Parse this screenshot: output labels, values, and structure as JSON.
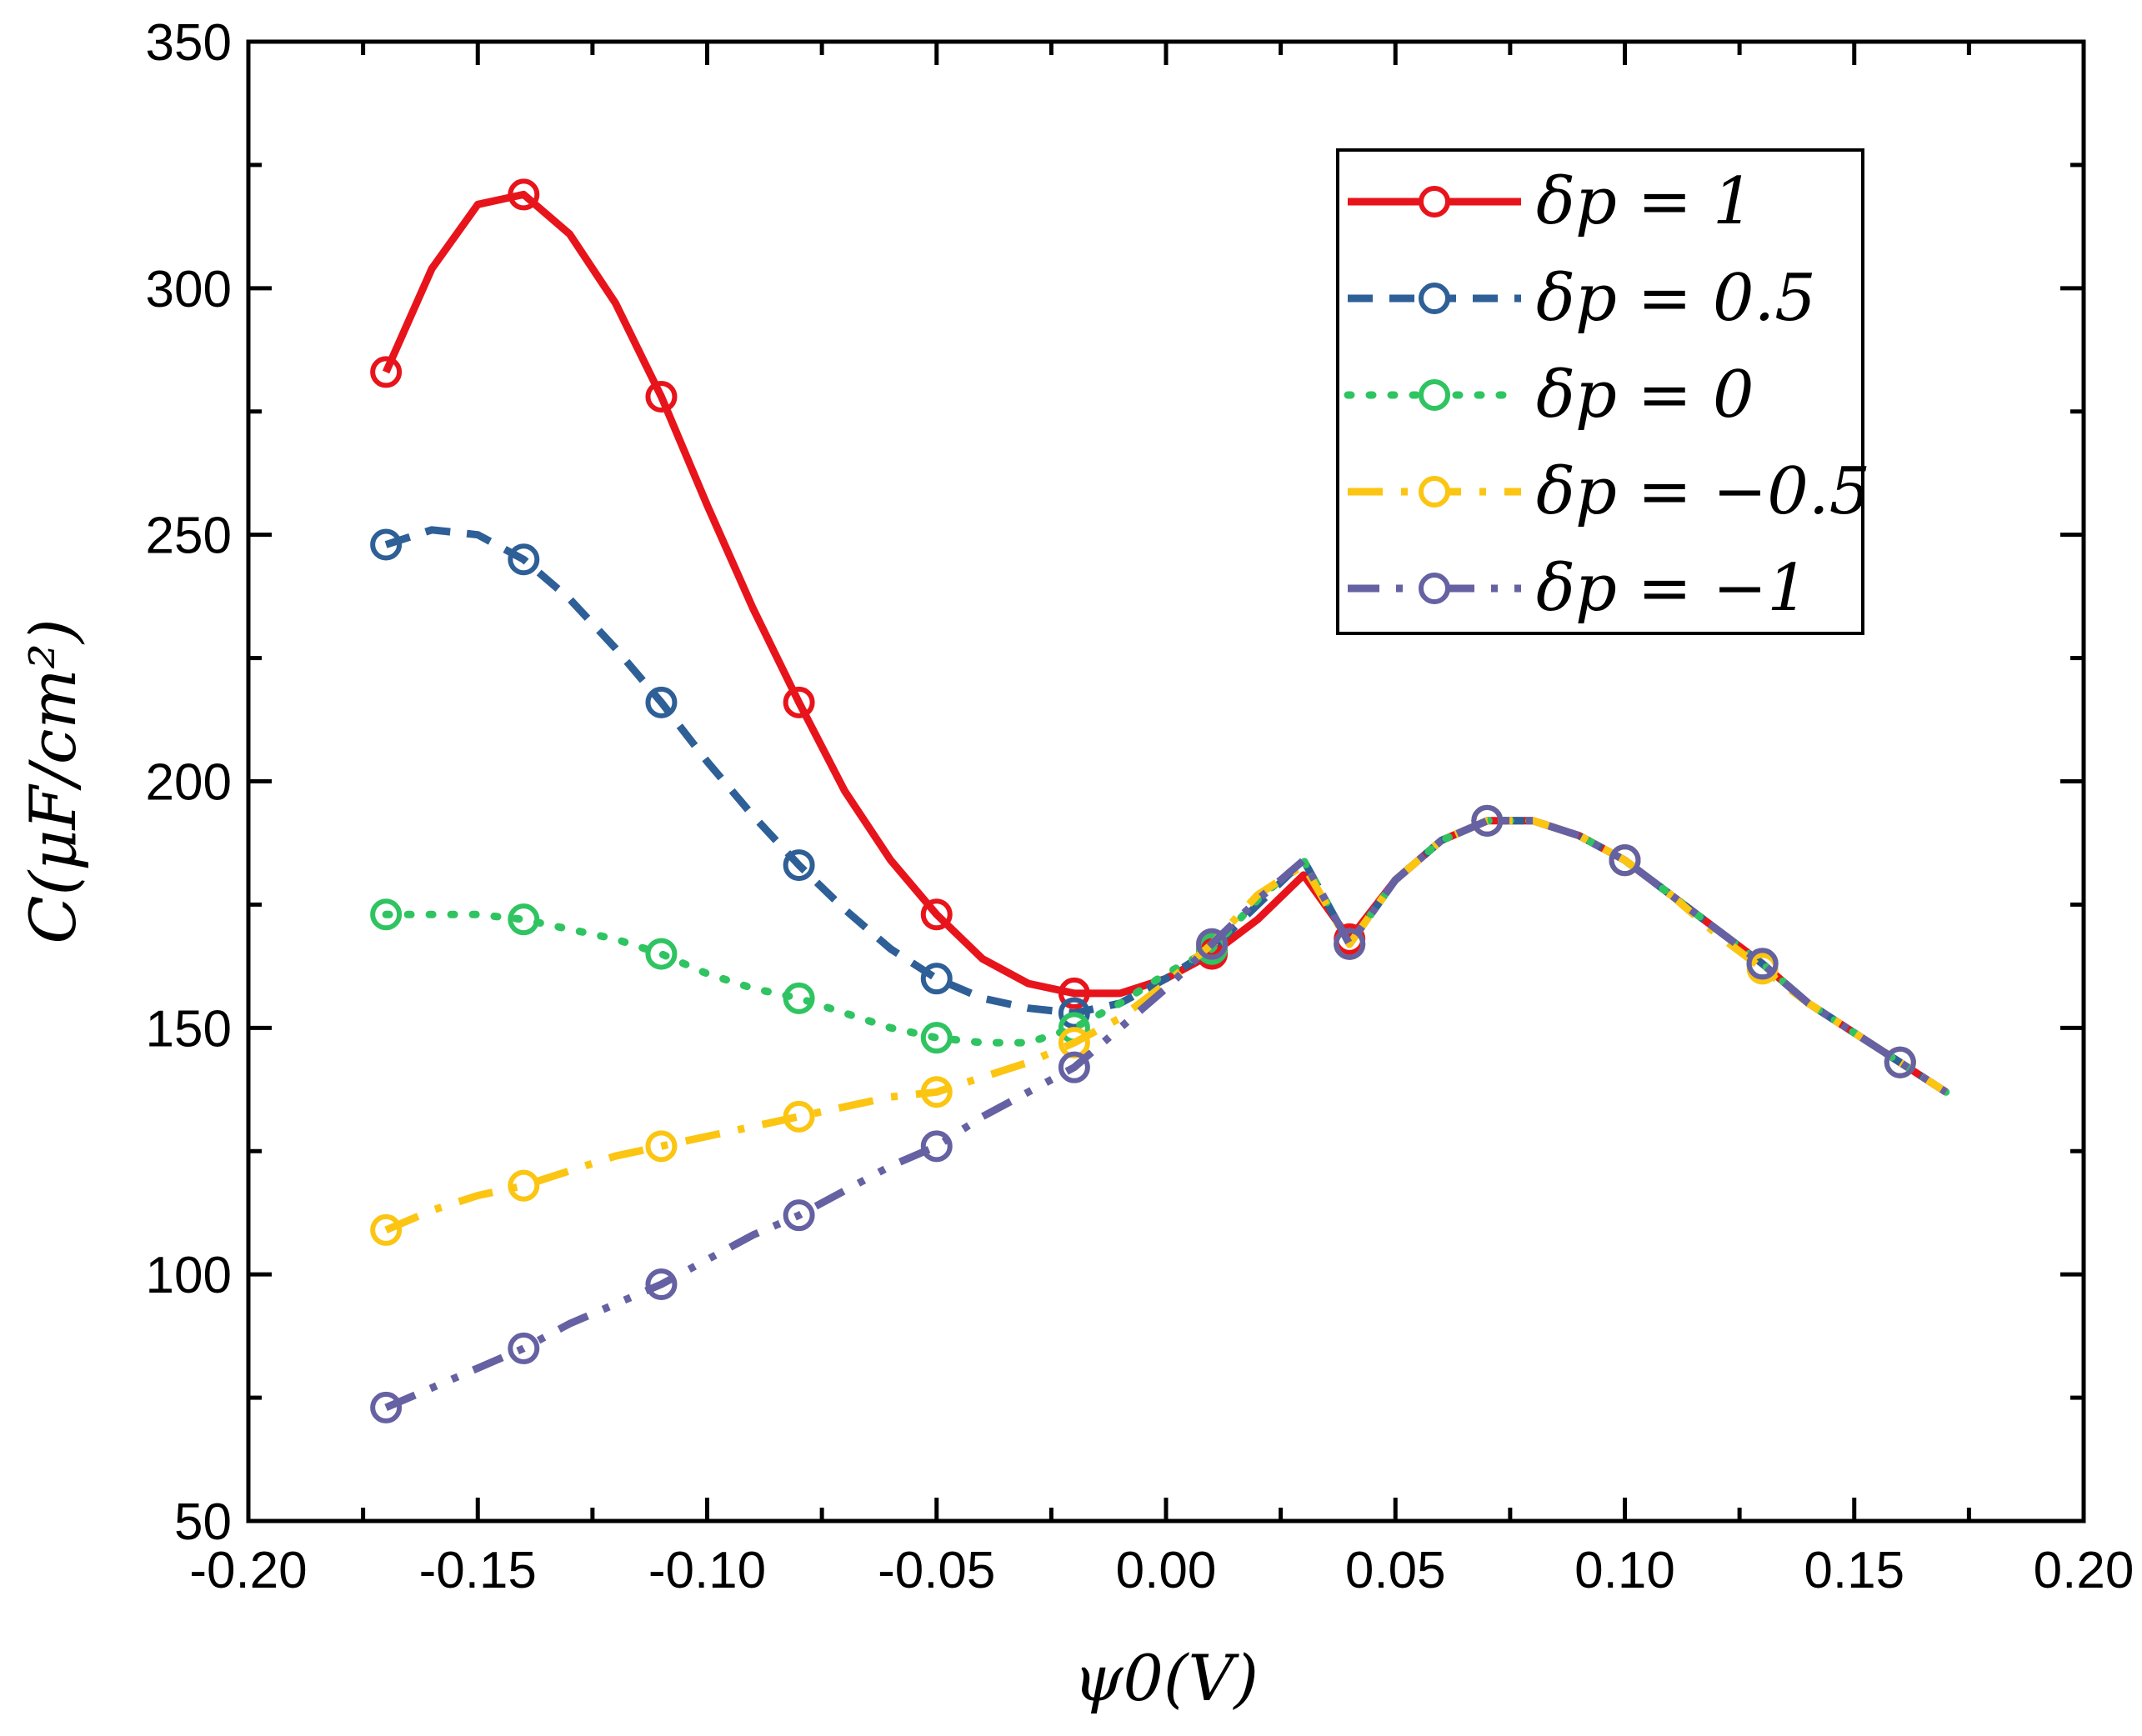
{
  "chart_data": {
    "type": "line",
    "title": "",
    "xlabel": "ψ0(V)",
    "ylabel": "C(μF/cm²)",
    "xlim": [
      -0.2,
      0.2
    ],
    "ylim": [
      50,
      350
    ],
    "xticks": [
      -0.2,
      -0.15,
      -0.1,
      -0.05,
      0.0,
      0.05,
      0.1,
      0.15,
      0.2
    ],
    "xtick_labels": [
      "-0.20",
      "-0.15",
      "-0.10",
      "-0.05",
      "0.00",
      "0.05",
      "0.10",
      "0.15",
      "0.20"
    ],
    "yticks": [
      50,
      100,
      150,
      200,
      250,
      300,
      350
    ],
    "ytick_labels": [
      "50",
      "100",
      "150",
      "200",
      "250",
      "300",
      "350"
    ],
    "grid": false,
    "legend_position": "top-right",
    "series": [
      {
        "name": "δp = 1",
        "color": "#e8141b",
        "dash": "solid",
        "x": [
          -0.17,
          -0.16,
          -0.15,
          -0.14,
          -0.13,
          -0.12,
          -0.11,
          -0.1,
          -0.09,
          -0.08,
          -0.07,
          -0.06,
          -0.05,
          -0.04,
          -0.03,
          -0.02,
          -0.01,
          0.0,
          0.01,
          0.02,
          0.03,
          0.04,
          0.05,
          0.06,
          0.07,
          0.08,
          0.09,
          0.1,
          0.11,
          0.12,
          0.13,
          0.14,
          0.15,
          0.16,
          0.17
        ],
        "y": [
          283,
          304,
          317,
          319,
          311,
          297,
          278,
          256,
          235,
          216,
          198,
          184,
          173,
          164,
          159,
          157,
          157,
          160,
          165,
          172,
          181,
          168,
          180,
          188,
          192,
          192,
          189,
          184,
          177,
          170,
          163,
          155,
          149,
          143,
          137
        ],
        "markers_x": [
          -0.17,
          -0.14,
          -0.11,
          -0.08,
          -0.05,
          -0.02,
          0.01,
          0.04,
          0.07,
          0.1,
          0.13,
          0.16
        ],
        "markers_y": [
          283,
          319,
          278,
          216,
          173,
          157,
          165,
          168,
          192,
          184,
          163,
          143
        ]
      },
      {
        "name": "δp = 0.5",
        "color": "#2e5f97",
        "dash": "dash",
        "x": [
          -0.17,
          -0.16,
          -0.15,
          -0.14,
          -0.13,
          -0.12,
          -0.11,
          -0.1,
          -0.09,
          -0.08,
          -0.07,
          -0.06,
          -0.05,
          -0.04,
          -0.03,
          -0.02,
          -0.01,
          0.0,
          0.01,
          0.02,
          0.03,
          0.04,
          0.05,
          0.06,
          0.07,
          0.08,
          0.09,
          0.1,
          0.11,
          0.12,
          0.13,
          0.14,
          0.15,
          0.16,
          0.17
        ],
        "y": [
          248,
          251,
          250,
          245,
          237,
          227,
          216,
          204,
          193,
          183,
          174,
          166,
          160,
          156,
          154,
          153,
          155,
          160,
          166,
          175,
          184,
          167,
          180,
          188,
          192,
          192,
          189,
          184,
          177,
          170,
          163,
          155,
          149,
          143,
          137
        ],
        "markers_x": [
          -0.17,
          -0.14,
          -0.11,
          -0.08,
          -0.05,
          -0.02,
          0.01,
          0.04,
          0.07,
          0.1,
          0.13,
          0.16
        ],
        "markers_y": [
          248,
          245,
          216,
          183,
          160,
          153,
          166,
          167,
          192,
          184,
          163,
          143
        ]
      },
      {
        "name": "δp = 0",
        "color": "#2fc461",
        "dash": "dot",
        "x": [
          -0.17,
          -0.16,
          -0.15,
          -0.14,
          -0.13,
          -0.12,
          -0.11,
          -0.1,
          -0.09,
          -0.08,
          -0.07,
          -0.06,
          -0.05,
          -0.04,
          -0.03,
          -0.02,
          -0.01,
          0.0,
          0.01,
          0.02,
          0.03,
          0.04,
          0.05,
          0.06,
          0.07,
          0.08,
          0.09,
          0.1,
          0.11,
          0.12,
          0.13,
          0.14,
          0.15,
          0.16,
          0.17
        ],
        "y": [
          173,
          173,
          173,
          172,
          170,
          168,
          165,
          161,
          158,
          156,
          153,
          150,
          148,
          147,
          147,
          150,
          155,
          161,
          166,
          176,
          184,
          167,
          180,
          188,
          192,
          192,
          189,
          184,
          177,
          170,
          163,
          155,
          149,
          143,
          137
        ],
        "markers_x": [
          -0.17,
          -0.14,
          -0.11,
          -0.08,
          -0.05,
          -0.02,
          0.01,
          0.04,
          0.07,
          0.1,
          0.13,
          0.16
        ],
        "markers_y": [
          173,
          172,
          165,
          156,
          148,
          150,
          166,
          167,
          192,
          184,
          163,
          143
        ]
      },
      {
        "name": "δp = −0.5",
        "color": "#fbc512",
        "dash": "dashdot",
        "x": [
          -0.17,
          -0.16,
          -0.15,
          -0.14,
          -0.13,
          -0.12,
          -0.11,
          -0.1,
          -0.09,
          -0.08,
          -0.07,
          -0.06,
          -0.05,
          -0.04,
          -0.03,
          -0.02,
          -0.01,
          0.0,
          0.01,
          0.02,
          0.03,
          0.04,
          0.05,
          0.06,
          0.07,
          0.08,
          0.09,
          0.1,
          0.11,
          0.12,
          0.13,
          0.14,
          0.15,
          0.16,
          0.17
        ],
        "y": [
          109,
          113,
          116,
          118,
          121,
          124,
          126,
          128,
          130,
          132,
          134,
          136,
          137,
          140,
          143,
          147,
          152,
          159,
          167,
          177,
          183,
          167,
          180,
          188,
          192,
          192,
          189,
          184,
          177,
          169,
          162,
          155,
          149,
          143,
          137
        ],
        "markers_x": [
          -0.17,
          -0.14,
          -0.11,
          -0.08,
          -0.05,
          -0.02,
          0.01,
          0.04,
          0.07,
          0.1,
          0.13,
          0.16
        ],
        "markers_y": [
          109,
          118,
          126,
          132,
          137,
          147,
          167,
          167,
          192,
          184,
          162,
          143
        ]
      },
      {
        "name": "δp = −1",
        "color": "#6561a2",
        "dash": "dashdotdot",
        "x": [
          -0.17,
          -0.16,
          -0.15,
          -0.14,
          -0.13,
          -0.12,
          -0.11,
          -0.1,
          -0.09,
          -0.08,
          -0.07,
          -0.06,
          -0.05,
          -0.04,
          -0.03,
          -0.02,
          -0.01,
          0.0,
          0.01,
          0.02,
          0.03,
          0.04,
          0.05,
          0.06,
          0.07,
          0.08,
          0.09,
          0.1,
          0.11,
          0.12,
          0.13,
          0.14,
          0.15,
          0.16,
          0.17
        ],
        "y": [
          73,
          77,
          81,
          85,
          90,
          94,
          98,
          103,
          108,
          112,
          117,
          122,
          126,
          132,
          137,
          142,
          150,
          158,
          167,
          176,
          184,
          167,
          180,
          188,
          192,
          192,
          189,
          184,
          177,
          170,
          163,
          155,
          149,
          143,
          137
        ],
        "markers_x": [
          -0.17,
          -0.14,
          -0.11,
          -0.08,
          -0.05,
          -0.02,
          0.01,
          0.04,
          0.07,
          0.1,
          0.13,
          0.16
        ],
        "markers_y": [
          73,
          85,
          98,
          112,
          126,
          142,
          167,
          167,
          192,
          184,
          163,
          143
        ]
      }
    ]
  }
}
